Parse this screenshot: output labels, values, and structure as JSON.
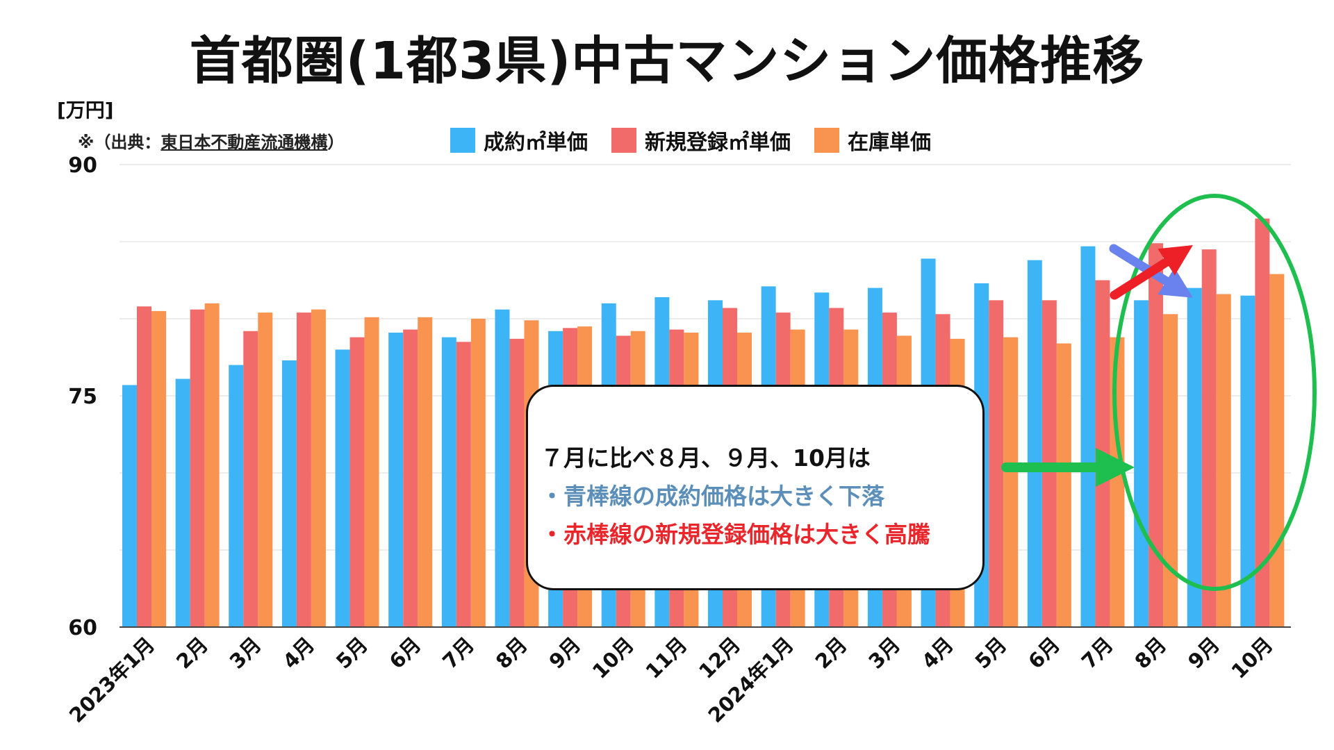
{
  "chart_data": {
    "type": "bar",
    "title": "首都圏(1都3県)中古マンション価格推移",
    "unit_label": "[万円]",
    "source_prefix": "※（出典：",
    "source_name": "東日本不動産流通機構",
    "source_suffix": "）",
    "ylim": [
      60,
      90
    ],
    "yticks": [
      60,
      75,
      90
    ],
    "grid": true,
    "legend_position": "top-center",
    "categories": [
      "2023年1月",
      "2月",
      "3月",
      "4月",
      "5月",
      "6月",
      "7月",
      "8月",
      "9月",
      "10月",
      "11月",
      "12月",
      "2024年1月",
      "2月",
      "3月",
      "4月",
      "5月",
      "6月",
      "7月",
      "8月",
      "9月",
      "10月"
    ],
    "series": [
      {
        "name": "成約㎡単価",
        "color": "#3db4f5",
        "values": [
          75.7,
          76.1,
          77.0,
          77.3,
          78.0,
          79.1,
          78.8,
          80.6,
          79.2,
          81.0,
          81.4,
          81.2,
          82.1,
          81.7,
          82.0,
          83.9,
          82.3,
          83.8,
          84.7,
          81.2,
          82.0,
          81.5
        ]
      },
      {
        "name": "新規登録㎡単価",
        "color": "#f26b6b",
        "values": [
          80.8,
          80.6,
          79.2,
          80.4,
          78.8,
          79.3,
          78.5,
          78.7,
          79.4,
          78.9,
          79.3,
          80.7,
          80.4,
          80.7,
          80.4,
          80.3,
          81.2,
          81.2,
          82.5,
          84.9,
          84.5,
          86.5
        ]
      },
      {
        "name": "在庫単価",
        "color": "#f99350",
        "values": [
          80.5,
          81.0,
          80.4,
          80.6,
          80.1,
          80.1,
          80.0,
          79.9,
          79.5,
          79.2,
          79.1,
          79.1,
          79.3,
          79.3,
          78.9,
          78.7,
          78.8,
          78.4,
          78.8,
          80.3,
          81.6,
          82.9
        ]
      }
    ],
    "annotation": {
      "heading": "７月に比べ８月、９月、10月は",
      "line_blue": "・青棒線の成約価格は大きく下落",
      "line_red": "・赤棒線の新規登録価格は大きく高騰"
    }
  }
}
